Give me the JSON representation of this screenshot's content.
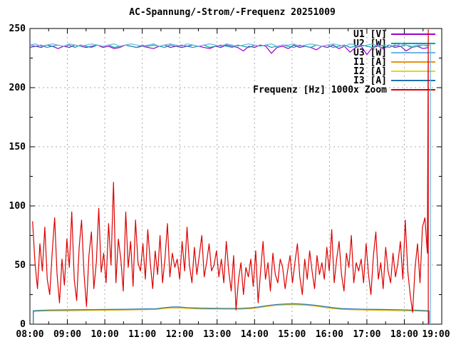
{
  "title": "AC-Spannung/-Strom/-Frequenz 20251009",
  "chart_data": {
    "type": "line",
    "title": "AC-Spannung/-Strom/-Frequenz 20251009",
    "grid": {
      "color": "#a8a8a8",
      "style": "dashed"
    },
    "x_axis": {
      "min": 8,
      "max": 19,
      "labels": [
        "08:00",
        "09:00",
        "10:00",
        "11:00",
        "12:00",
        "13:00",
        "14:00",
        "15:00",
        "16:00",
        "17:00",
        "18:00",
        "19:00"
      ],
      "minor_step": 0.5
    },
    "y_axis": {
      "min": 0,
      "max": 250,
      "tick_step": 50,
      "labels": [
        "0",
        "50",
        "100",
        "150",
        "200",
        "250"
      ],
      "minor_step": 25
    },
    "legend": {
      "position": "top-right",
      "entries": [
        {
          "label": "U1 [V]",
          "color": "#9a00cd"
        },
        {
          "label": "U2 [W]",
          "color": "#00a0a0"
        },
        {
          "label": "U3 [W]",
          "color": "#6cb6e4"
        },
        {
          "label": "I1 [A]",
          "color": "#e8930c"
        },
        {
          "label": "I2 [A]",
          "color": "#e0d820"
        },
        {
          "label": "I3 [A]",
          "color": "#2272b2"
        },
        {
          "label": "Frequenz [Hz] 1000x Zoom",
          "color": "#dd0000"
        }
      ]
    },
    "series": [
      {
        "name": "U1 [V]",
        "color": "#9a00cd",
        "start": 8.0,
        "step": 0.15,
        "values": [
          234,
          235,
          234,
          236,
          235,
          233,
          235,
          234,
          236,
          235,
          234,
          235,
          236,
          234,
          235,
          233,
          234,
          236,
          235,
          234,
          235,
          234,
          233,
          235,
          236,
          234,
          235,
          234,
          235,
          236,
          235,
          234,
          233,
          235,
          234,
          236,
          235,
          234,
          231,
          235,
          234,
          236,
          235,
          229,
          234,
          235,
          233,
          236,
          234,
          235,
          234,
          232,
          235,
          234,
          236,
          233,
          235,
          230,
          234,
          235,
          228,
          234,
          235,
          233,
          236,
          234,
          235,
          231,
          234,
          235,
          233,
          234
        ]
      },
      {
        "name": "U2 [W]",
        "color": "#00a0a0",
        "start": 8.0,
        "step": 0.15,
        "values": [
          236,
          235,
          236,
          234,
          235,
          236,
          235,
          236,
          234,
          236,
          235,
          234,
          236,
          235,
          236,
          234,
          235,
          236,
          235,
          234,
          236,
          235,
          236,
          235,
          234,
          236,
          235,
          236,
          235,
          234,
          235,
          236,
          234,
          235,
          236,
          235,
          234,
          236,
          235,
          234,
          236,
          235,
          236,
          234,
          235,
          236,
          235,
          234,
          236,
          235,
          234,
          236,
          235,
          236,
          234,
          235,
          236,
          234,
          235,
          236,
          235,
          234,
          236,
          235,
          234,
          236,
          235,
          236,
          234,
          235,
          236,
          235
        ]
      },
      {
        "name": "U3 [W]",
        "color": "#6cb6e4",
        "start": 8.0,
        "step": 0.15,
        "values": [
          236,
          237,
          235,
          236,
          237,
          236,
          235,
          237,
          236,
          235,
          236,
          237,
          236,
          235,
          236,
          237,
          235,
          236,
          237,
          236,
          235,
          236,
          237,
          235,
          236,
          237,
          236,
          235,
          237,
          236,
          235,
          236,
          237,
          236,
          235,
          237,
          236,
          235,
          236,
          237,
          236,
          235,
          236,
          237,
          235,
          236,
          236,
          237,
          235,
          236,
          237,
          236,
          235,
          236,
          237,
          236,
          235,
          237,
          236,
          235,
          236,
          237,
          235,
          236,
          236,
          235,
          237,
          236,
          235,
          236,
          236,
          236
        ],
        "append": [
          [
            18.7,
            236
          ],
          [
            18.7,
            0
          ]
        ]
      },
      {
        "name": "I1 [A]",
        "color": "#e8930c",
        "points": [
          [
            8.09,
            0
          ],
          [
            8.09,
            10.8
          ],
          [
            8.5,
            11.2
          ],
          [
            9.0,
            11.4
          ],
          [
            9.5,
            11.6
          ],
          [
            10.0,
            11.8
          ],
          [
            10.5,
            12.0
          ],
          [
            11.0,
            12.2
          ],
          [
            11.35,
            12.4
          ],
          [
            11.6,
            13.3
          ],
          [
            11.8,
            13.8
          ],
          [
            12.0,
            13.8
          ],
          [
            12.2,
            13.3
          ],
          [
            12.5,
            12.9
          ],
          [
            13.0,
            12.8
          ],
          [
            13.6,
            12.7
          ],
          [
            13.9,
            13.1
          ],
          [
            14.1,
            13.9
          ],
          [
            14.35,
            15.1
          ],
          [
            14.6,
            16.0
          ],
          [
            14.85,
            16.4
          ],
          [
            15.1,
            16.5
          ],
          [
            15.35,
            16.1
          ],
          [
            15.6,
            15.4
          ],
          [
            15.85,
            14.3
          ],
          [
            16.1,
            13.2
          ],
          [
            16.35,
            12.5
          ],
          [
            16.6,
            12.2
          ],
          [
            17.0,
            11.9
          ],
          [
            17.4,
            11.7
          ],
          [
            17.8,
            11.5
          ],
          [
            18.2,
            11.2
          ],
          [
            18.5,
            10.9
          ],
          [
            18.66,
            10.7
          ],
          [
            18.66,
            0
          ]
        ]
      },
      {
        "name": "I2 [A]",
        "color": "#e0d820",
        "points": [
          [
            8.09,
            0
          ],
          [
            8.09,
            11.1
          ],
          [
            8.5,
            11.5
          ],
          [
            9.0,
            11.7
          ],
          [
            9.5,
            11.9
          ],
          [
            10.0,
            12.1
          ],
          [
            10.5,
            12.3
          ],
          [
            11.0,
            12.5
          ],
          [
            11.35,
            12.7
          ],
          [
            11.6,
            13.6
          ],
          [
            11.8,
            14.1
          ],
          [
            12.0,
            14.1
          ],
          [
            12.2,
            13.6
          ],
          [
            12.5,
            13.2
          ],
          [
            13.0,
            13.1
          ],
          [
            13.6,
            13.0
          ],
          [
            13.9,
            13.4
          ],
          [
            14.1,
            14.2
          ],
          [
            14.35,
            15.4
          ],
          [
            14.6,
            16.3
          ],
          [
            14.85,
            16.7
          ],
          [
            15.1,
            16.8
          ],
          [
            15.35,
            16.4
          ],
          [
            15.6,
            15.7
          ],
          [
            15.85,
            14.6
          ],
          [
            16.1,
            13.5
          ],
          [
            16.35,
            12.8
          ],
          [
            16.6,
            12.5
          ],
          [
            17.0,
            12.2
          ],
          [
            17.4,
            12.0
          ],
          [
            17.8,
            11.8
          ],
          [
            18.2,
            11.5
          ],
          [
            18.5,
            11.2
          ],
          [
            18.66,
            11.0
          ],
          [
            18.66,
            0
          ]
        ]
      },
      {
        "name": "I3 [A]",
        "color": "#2272b2",
        "points": [
          [
            8.09,
            0
          ],
          [
            8.09,
            11.4
          ],
          [
            8.25,
            11.7
          ],
          [
            8.5,
            11.9
          ],
          [
            9.0,
            12.1
          ],
          [
            9.5,
            12.3
          ],
          [
            10.0,
            12.4
          ],
          [
            10.5,
            12.6
          ],
          [
            11.0,
            12.9
          ],
          [
            11.35,
            13.1
          ],
          [
            11.6,
            14.0
          ],
          [
            11.8,
            14.5
          ],
          [
            12.0,
            14.5
          ],
          [
            12.2,
            14.0
          ],
          [
            12.5,
            13.6
          ],
          [
            12.8,
            13.5
          ],
          [
            13.2,
            13.4
          ],
          [
            13.6,
            13.4
          ],
          [
            13.9,
            13.8
          ],
          [
            14.1,
            14.6
          ],
          [
            14.35,
            15.8
          ],
          [
            14.6,
            16.7
          ],
          [
            14.85,
            17.1
          ],
          [
            15.1,
            17.2
          ],
          [
            15.35,
            16.8
          ],
          [
            15.6,
            16.1
          ],
          [
            15.85,
            15.0
          ],
          [
            16.1,
            13.9
          ],
          [
            16.35,
            13.2
          ],
          [
            16.6,
            12.9
          ],
          [
            17.0,
            12.6
          ],
          [
            17.4,
            12.4
          ],
          [
            17.8,
            12.2
          ],
          [
            18.2,
            11.9
          ],
          [
            18.5,
            11.6
          ],
          [
            18.66,
            11.3
          ],
          [
            18.66,
            0
          ]
        ]
      },
      {
        "name": "Frequenz [Hz] 1000x Zoom",
        "color": "#dd0000",
        "start": 8.07,
        "step": 0.0655,
        "values": [
          87,
          52,
          30,
          68,
          45,
          82,
          38,
          25,
          60,
          90,
          42,
          18,
          55,
          33,
          72,
          48,
          95,
          38,
          20,
          65,
          88,
          42,
          15,
          58,
          78,
          30,
          52,
          98,
          44,
          60,
          35,
          85,
          50,
          120,
          35,
          72,
          55,
          28,
          95,
          48,
          70,
          32,
          88,
          52,
          45,
          68,
          38,
          80,
          52,
          30,
          62,
          42,
          75,
          35,
          55,
          85,
          40,
          60,
          48,
          55,
          38,
          70,
          45,
          82,
          50,
          35,
          65,
          42,
          58,
          75,
          40,
          52,
          68,
          45,
          50,
          62,
          40,
          55,
          35,
          70,
          45,
          28,
          58,
          12,
          38,
          52,
          25,
          48,
          40,
          55,
          32,
          62,
          18,
          45,
          70,
          38,
          52,
          28,
          60,
          42,
          35,
          55,
          48,
          30,
          45,
          58,
          35,
          52,
          68,
          40,
          25,
          55,
          38,
          62,
          45,
          30,
          58,
          42,
          52,
          38,
          65,
          45,
          80,
          35,
          55,
          70,
          42,
          28,
          60,
          48,
          75,
          35,
          52,
          45,
          55,
          35,
          68,
          42,
          25,
          58,
          78,
          38,
          52,
          30,
          65,
          45,
          35,
          60,
          40,
          52,
          70,
          38,
          88,
          45,
          25,
          10,
          48,
          68,
          35,
          82,
          90,
          60
        ],
        "append": [
          [
            18.64,
            249
          ],
          [
            18.64,
            0
          ]
        ]
      }
    ]
  }
}
